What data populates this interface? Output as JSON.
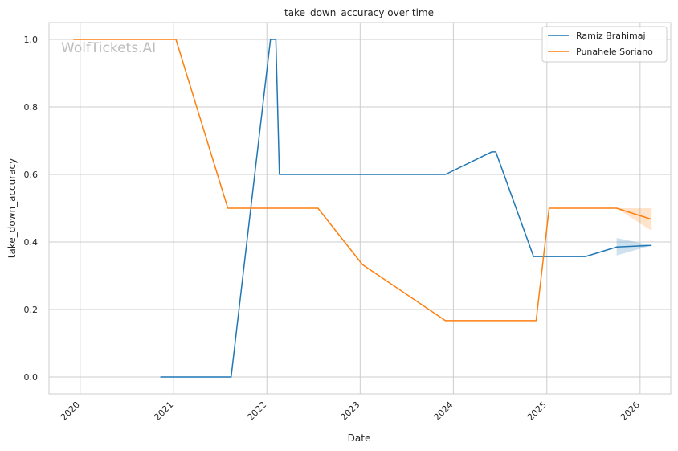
{
  "watermark": "WolfTickets.AI",
  "chart_data": {
    "type": "line",
    "title": "take_down_accuracy over time",
    "xlabel": "Date",
    "ylabel": "take_down_accuracy",
    "x_ticks": [
      "2020",
      "2021",
      "2022",
      "2023",
      "2024",
      "2025",
      "2026"
    ],
    "y_ticks": [
      "0.0",
      "0.2",
      "0.4",
      "0.6",
      "0.8",
      "1.0"
    ],
    "xlim": [
      "2019-09-01",
      "2026-05-01"
    ],
    "ylim": [
      -0.05,
      1.05
    ],
    "grid": true,
    "legend_position": "top-right",
    "series": [
      {
        "name": "Ramiz Brahimaj",
        "color": "#1f77b4",
        "points": [
          {
            "x": "2020-11-10",
            "y": 0.0
          },
          {
            "x": "2021-08-14",
            "y": 0.0
          },
          {
            "x": "2022-01-15",
            "y": 1.0
          },
          {
            "x": "2022-02-05",
            "y": 1.0
          },
          {
            "x": "2022-02-19",
            "y": 0.6
          },
          {
            "x": "2023-12-01",
            "y": 0.6
          },
          {
            "x": "2024-05-30",
            "y": 0.667
          },
          {
            "x": "2024-06-15",
            "y": 0.667
          },
          {
            "x": "2024-11-10",
            "y": 0.357
          },
          {
            "x": "2025-06-01",
            "y": 0.357
          },
          {
            "x": "2025-10-01",
            "y": 0.385
          },
          {
            "x": "2026-02-15",
            "y": 0.39
          }
        ],
        "band": [
          {
            "x": "2025-10-01",
            "low": 0.36,
            "high": 0.412
          },
          {
            "x": "2026-02-15",
            "low": 0.39,
            "high": 0.39
          }
        ]
      },
      {
        "name": "Punahele Soriano",
        "color": "#ff7f0e",
        "points": [
          {
            "x": "2019-12-05",
            "y": 1.0
          },
          {
            "x": "2021-01-10",
            "y": 1.0
          },
          {
            "x": "2021-08-01",
            "y": 0.5
          },
          {
            "x": "2022-07-20",
            "y": 0.5
          },
          {
            "x": "2023-01-10",
            "y": 0.333
          },
          {
            "x": "2023-12-01",
            "y": 0.167
          },
          {
            "x": "2024-11-20",
            "y": 0.167
          },
          {
            "x": "2025-01-10",
            "y": 0.5
          },
          {
            "x": "2025-10-01",
            "y": 0.5
          },
          {
            "x": "2026-02-15",
            "y": 0.467
          }
        ],
        "band": [
          {
            "x": "2025-10-01",
            "low": 0.5,
            "high": 0.5
          },
          {
            "x": "2026-02-15",
            "low": 0.433,
            "high": 0.5
          }
        ]
      }
    ]
  }
}
